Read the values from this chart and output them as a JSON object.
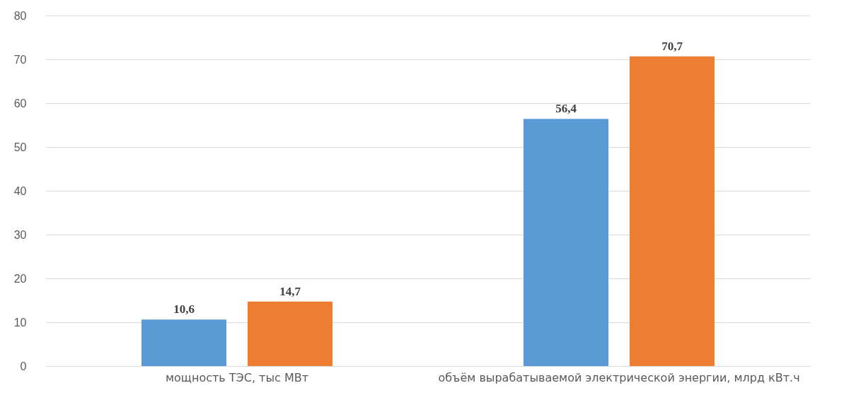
{
  "chart_data": {
    "type": "bar",
    "categories": [
      "мощность ТЭС, тыс МВт",
      "объём вырабатываемой электрической энергии,  млрд кВт.ч"
    ],
    "series": [
      {
        "color": "#5b9bd5",
        "values": [
          10.6,
          56.4
        ],
        "value_labels": [
          "10,6",
          "56,4"
        ]
      },
      {
        "color": "#ed7d31",
        "values": [
          14.7,
          70.7
        ],
        "value_labels": [
          "14,7",
          "70,7"
        ]
      }
    ],
    "ylim": [
      0,
      80
    ],
    "yticks": [
      0,
      10,
      20,
      30,
      40,
      50,
      60,
      70,
      80
    ],
    "grid": "y"
  }
}
